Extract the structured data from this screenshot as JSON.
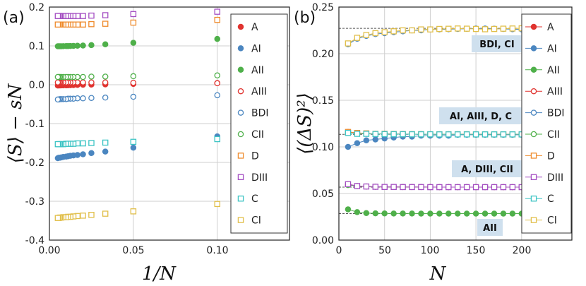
{
  "colors": {
    "A": "#e0332f",
    "AI": "#4b86c0",
    "AII": "#4fb04a",
    "AIII": "#e0332f",
    "BDI": "#4b86c0",
    "CII": "#4fb04a",
    "D": "#ef8b2c",
    "DIII": "#a44ec2",
    "C": "#3cc4c4",
    "CI": "#e1bf4a",
    "annotation_bg": "#cfe0ee",
    "grid": "#cfcfcf",
    "dashed": "#555555"
  },
  "chart_data": [
    {
      "type": "scatter",
      "panel_label": "(a)",
      "xlabel": "1/N",
      "ylabel": "⟨S⟩ − sN",
      "xlim": [
        0,
        0.143
      ],
      "ylim": [
        -0.4,
        0.2
      ],
      "xticks": [
        "0.00",
        "0.05",
        "0.10"
      ],
      "yticks": [
        "-0.4",
        "-0.3",
        "-0.2",
        "-0.1",
        "0.0",
        "0.1",
        "0.2"
      ],
      "legend": [
        "A",
        "AI",
        "AII",
        "AIII",
        "BDI",
        "CII",
        "D",
        "DIII",
        "C",
        "CI"
      ],
      "x": [
        0.1,
        0.05,
        0.0333,
        0.025,
        0.02,
        0.0167,
        0.0143,
        0.0125,
        0.0111,
        0.01,
        0.0083,
        0.0071,
        0.0063,
        0.0056,
        0.005
      ],
      "series": [
        {
          "name": "A",
          "marker": "filled-circle",
          "values": [
            0.004,
            0.002,
            0.001,
            0.0005,
            0.0,
            -0.0005,
            -0.001,
            -0.0012,
            -0.0014,
            -0.0015,
            -0.0016,
            -0.0017,
            -0.0018,
            -0.0019,
            -0.002
          ]
        },
        {
          "name": "AI",
          "marker": "filled-circle",
          "values": [
            -0.133,
            -0.162,
            -0.172,
            -0.176,
            -0.179,
            -0.181,
            -0.182,
            -0.183,
            -0.184,
            -0.185,
            -0.186,
            -0.187,
            -0.188,
            -0.188,
            -0.189
          ]
        },
        {
          "name": "AII",
          "marker": "filled-circle",
          "values": [
            0.118,
            0.108,
            0.104,
            0.102,
            0.101,
            0.1005,
            0.1,
            0.0998,
            0.0996,
            0.0995,
            0.0993,
            0.0992,
            0.0991,
            0.099,
            0.099
          ]
        },
        {
          "name": "AIII",
          "marker": "open-circle",
          "values": [
            0.004,
            0.005,
            0.006,
            0.006,
            0.006,
            0.006,
            0.006,
            0.006,
            0.006,
            0.006,
            0.006,
            0.006,
            0.006,
            0.006,
            0.006
          ]
        },
        {
          "name": "BDI",
          "marker": "open-circle",
          "values": [
            -0.027,
            -0.031,
            -0.033,
            -0.034,
            -0.035,
            -0.035,
            -0.036,
            -0.036,
            -0.036,
            -0.037,
            -0.037,
            -0.037,
            -0.037,
            -0.038,
            -0.038
          ]
        },
        {
          "name": "CII",
          "marker": "open-circle",
          "values": [
            0.024,
            0.022,
            0.021,
            0.021,
            0.02,
            0.02,
            0.02,
            0.02,
            0.02,
            0.02,
            0.02,
            0.02,
            0.02,
            0.02,
            0.02
          ]
        },
        {
          "name": "D",
          "marker": "open-square",
          "values": [
            0.167,
            0.16,
            0.157,
            0.156,
            0.155,
            0.155,
            0.155,
            0.155,
            0.155,
            0.155,
            0.155,
            0.155,
            0.155,
            0.155,
            0.155
          ]
        },
        {
          "name": "DIII",
          "marker": "open-square",
          "values": [
            0.188,
            0.182,
            0.179,
            0.178,
            0.177,
            0.177,
            0.177,
            0.177,
            0.177,
            0.177,
            0.177,
            0.177,
            0.177,
            0.177,
            0.177
          ]
        },
        {
          "name": "C",
          "marker": "open-square",
          "values": [
            -0.14,
            -0.147,
            -0.149,
            -0.15,
            -0.151,
            -0.151,
            -0.152,
            -0.152,
            -0.152,
            -0.152,
            -0.153,
            -0.153,
            -0.153,
            -0.153,
            -0.153
          ]
        },
        {
          "name": "CI",
          "marker": "open-square",
          "values": [
            -0.307,
            -0.326,
            -0.332,
            -0.335,
            -0.337,
            -0.338,
            -0.339,
            -0.34,
            -0.34,
            -0.341,
            -0.341,
            -0.342,
            -0.342,
            -0.343,
            -0.343
          ]
        }
      ]
    },
    {
      "type": "line",
      "panel_label": "(b)",
      "xlabel": "N",
      "ylabel": "⟨(ΔS)²⟩",
      "xlim": [
        0,
        255
      ],
      "ylim": [
        0,
        0.25
      ],
      "xticks": [
        "0",
        "50",
        "100",
        "150",
        "200"
      ],
      "yticks": [
        "0.00",
        "0.05",
        "0.10",
        "0.15",
        "0.20",
        "0.25"
      ],
      "legend": [
        "A",
        "AI",
        "AII",
        "AIII",
        "BDI",
        "CII",
        "D",
        "DIII",
        "C",
        "CI"
      ],
      "x": [
        10,
        20,
        30,
        40,
        50,
        60,
        70,
        80,
        90,
        100,
        110,
        120,
        130,
        140,
        150,
        160,
        170,
        180,
        190,
        200
      ],
      "reference_lines": [
        0.2272,
        0.1134,
        0.0568,
        0.0284
      ],
      "annotations": [
        "BDI, CI",
        "AI, AIII, D, C",
        "A, DIII, CII",
        "AII"
      ],
      "series": [
        {
          "name": "A",
          "marker": "filled-circle",
          "values": [
            0.06,
            0.058,
            0.0575,
            0.0572,
            0.057,
            0.057,
            0.0569,
            0.0569,
            0.0569,
            0.0569,
            0.0568,
            0.0568,
            0.0568,
            0.0568,
            0.0568,
            0.0568,
            0.0568,
            0.0568,
            0.0568,
            0.0568
          ]
        },
        {
          "name": "AI",
          "marker": "filled-circle",
          "values": [
            0.1,
            0.104,
            0.107,
            0.108,
            0.109,
            0.11,
            0.111,
            0.111,
            0.112,
            0.112,
            0.112,
            0.112,
            0.113,
            0.113,
            0.113,
            0.113,
            0.113,
            0.113,
            0.113,
            0.113
          ]
        },
        {
          "name": "AII",
          "marker": "filled-circle",
          "values": [
            0.033,
            0.03,
            0.029,
            0.0287,
            0.0286,
            0.0285,
            0.0285,
            0.0285,
            0.0284,
            0.0284,
            0.0284,
            0.0284,
            0.0284,
            0.0284,
            0.0284,
            0.0284,
            0.0284,
            0.0284,
            0.0284,
            0.0284
          ]
        },
        {
          "name": "AIII",
          "marker": "open-circle",
          "values": [
            0.116,
            0.115,
            0.114,
            0.114,
            0.114,
            0.1138,
            0.1137,
            0.1136,
            0.1136,
            0.1135,
            0.1135,
            0.1135,
            0.1135,
            0.1135,
            0.1134,
            0.1134,
            0.1134,
            0.1134,
            0.1134,
            0.1134
          ]
        },
        {
          "name": "BDI",
          "marker": "open-circle",
          "values": [
            0.21,
            0.216,
            0.219,
            0.221,
            0.222,
            0.223,
            0.224,
            0.225,
            0.225,
            0.226,
            0.226,
            0.2262,
            0.2265,
            0.2267,
            0.227,
            0.227,
            0.2268,
            0.2265,
            0.2262,
            0.226
          ]
        },
        {
          "name": "CII",
          "marker": "open-circle",
          "values": [
            0.059,
            0.058,
            0.0575,
            0.0572,
            0.057,
            0.057,
            0.0569,
            0.0569,
            0.0569,
            0.0568,
            0.0568,
            0.0568,
            0.0568,
            0.0568,
            0.0568,
            0.0568,
            0.0568,
            0.0568,
            0.0568,
            0.0568
          ]
        },
        {
          "name": "D",
          "marker": "open-square",
          "values": [
            0.116,
            0.115,
            0.1145,
            0.114,
            0.114,
            0.1138,
            0.1137,
            0.1136,
            0.1136,
            0.1135,
            0.1135,
            0.1135,
            0.1135,
            0.1135,
            0.1134,
            0.1134,
            0.1134,
            0.1134,
            0.1134,
            0.1134
          ]
        },
        {
          "name": "DIII",
          "marker": "open-square",
          "values": [
            0.06,
            0.058,
            0.0575,
            0.0572,
            0.057,
            0.057,
            0.0569,
            0.0569,
            0.0569,
            0.0568,
            0.0568,
            0.0568,
            0.0568,
            0.0568,
            0.0568,
            0.0568,
            0.0568,
            0.0568,
            0.0568,
            0.0568
          ]
        },
        {
          "name": "C",
          "marker": "open-square",
          "values": [
            0.115,
            0.114,
            0.114,
            0.1138,
            0.1137,
            0.1136,
            0.1136,
            0.1135,
            0.1135,
            0.1135,
            0.1134,
            0.1134,
            0.1134,
            0.1134,
            0.1134,
            0.1134,
            0.1134,
            0.1134,
            0.1134,
            0.1134
          ]
        },
        {
          "name": "CI",
          "marker": "open-square",
          "values": [
            0.211,
            0.217,
            0.22,
            0.222,
            0.223,
            0.224,
            0.225,
            0.225,
            0.226,
            0.226,
            0.2265,
            0.2267,
            0.227,
            0.2268,
            0.2265,
            0.2262,
            0.2265,
            0.2268,
            0.227,
            0.2272
          ]
        }
      ]
    }
  ]
}
